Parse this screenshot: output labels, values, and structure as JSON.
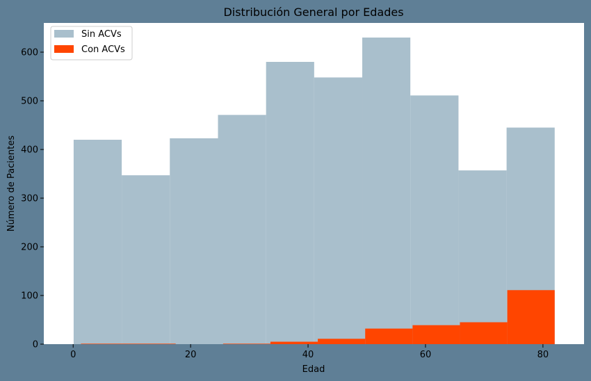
{
  "chart_data": {
    "type": "bar",
    "title": "Distribución General por Edades",
    "xlabel": "Edad",
    "ylabel": "Número de Pacientes",
    "xlim": [
      -5,
      87
    ],
    "ylim": [
      0,
      660
    ],
    "xticks": [
      0,
      20,
      40,
      60,
      80
    ],
    "yticks": [
      0,
      100,
      200,
      300,
      400,
      500,
      600
    ],
    "grid": false,
    "legend_position": "top-left",
    "series": [
      {
        "name": "Sin ACVs",
        "color": "#a9bfcc",
        "bins": [
          {
            "x0": 0.08,
            "x1": 8.27,
            "value": 420
          },
          {
            "x0": 8.27,
            "x1": 16.46,
            "value": 347
          },
          {
            "x0": 16.46,
            "x1": 24.66,
            "value": 423
          },
          {
            "x0": 24.66,
            "x1": 32.85,
            "value": 471
          },
          {
            "x0": 32.85,
            "x1": 41.04,
            "value": 580
          },
          {
            "x0": 41.04,
            "x1": 49.23,
            "value": 548
          },
          {
            "x0": 49.23,
            "x1": 57.42,
            "value": 630
          },
          {
            "x0": 57.42,
            "x1": 65.62,
            "value": 511
          },
          {
            "x0": 65.62,
            "x1": 73.81,
            "value": 357
          },
          {
            "x0": 73.81,
            "x1": 82.0,
            "value": 445
          }
        ]
      },
      {
        "name": "Con ACVs",
        "color": "#ff4500",
        "bins": [
          {
            "x0": 1.32,
            "x1": 9.39,
            "value": 1
          },
          {
            "x0": 9.39,
            "x1": 17.46,
            "value": 1
          },
          {
            "x0": 17.46,
            "x1": 25.53,
            "value": 0
          },
          {
            "x0": 25.53,
            "x1": 33.59,
            "value": 1
          },
          {
            "x0": 33.59,
            "x1": 41.66,
            "value": 5
          },
          {
            "x0": 41.66,
            "x1": 49.73,
            "value": 11
          },
          {
            "x0": 49.73,
            "x1": 57.8,
            "value": 32
          },
          {
            "x0": 57.8,
            "x1": 65.86,
            "value": 39
          },
          {
            "x0": 65.86,
            "x1": 73.93,
            "value": 45
          },
          {
            "x0": 73.93,
            "x1": 82.0,
            "value": 111
          }
        ]
      }
    ]
  }
}
